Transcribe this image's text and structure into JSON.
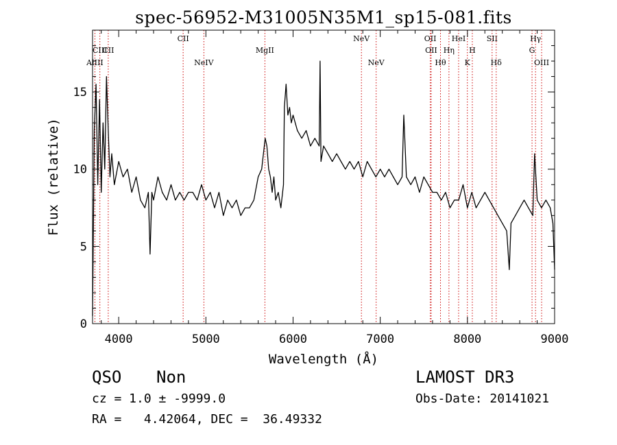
{
  "chart_data": {
    "type": "line",
    "title": "spec-56952-M31005N35M1_sp15-081.fits",
    "xlabel": "Wavelength (Å)",
    "ylabel": "Flux (relative)",
    "xlim": [
      3700,
      9000
    ],
    "ylim": [
      0,
      19
    ],
    "xticks": [
      4000,
      5000,
      6000,
      7000,
      8000,
      9000
    ],
    "yticks": [
      0,
      5,
      10,
      15
    ],
    "grid": false,
    "colors": {
      "line": "#000000",
      "marker": "#cc0000"
    },
    "series": [
      {
        "name": "flux",
        "x": [
          3700,
          3720,
          3740,
          3760,
          3780,
          3800,
          3820,
          3840,
          3860,
          3880,
          3900,
          3920,
          3950,
          4000,
          4050,
          4100,
          4150,
          4200,
          4250,
          4300,
          4340,
          4360,
          4380,
          4400,
          4450,
          4500,
          4550,
          4600,
          4650,
          4700,
          4750,
          4800,
          4850,
          4900,
          4950,
          5000,
          5050,
          5100,
          5150,
          5200,
          5250,
          5300,
          5350,
          5400,
          5450,
          5500,
          5550,
          5600,
          5640,
          5680,
          5700,
          5720,
          5740,
          5760,
          5780,
          5800,
          5830,
          5860,
          5890,
          5900,
          5920,
          5940,
          5960,
          5980,
          6000,
          6050,
          6100,
          6150,
          6200,
          6250,
          6300,
          6310,
          6320,
          6350,
          6400,
          6450,
          6500,
          6550,
          6600,
          6650,
          6700,
          6750,
          6800,
          6850,
          6900,
          6950,
          7000,
          7050,
          7100,
          7150,
          7200,
          7250,
          7270,
          7300,
          7350,
          7400,
          7450,
          7500,
          7550,
          7600,
          7650,
          7700,
          7750,
          7800,
          7850,
          7900,
          7950,
          8000,
          8050,
          8100,
          8150,
          8200,
          8250,
          8300,
          8350,
          8400,
          8450,
          8480,
          8500,
          8550,
          8600,
          8650,
          8700,
          8750,
          8770,
          8800,
          8850,
          8900,
          8950,
          8980,
          9000
        ],
        "values": [
          0.5,
          12.5,
          15.5,
          9.0,
          14.5,
          8.5,
          13.0,
          10.0,
          16.0,
          12.5,
          9.5,
          11.0,
          9.0,
          10.5,
          9.5,
          10.0,
          8.5,
          9.5,
          8.0,
          7.5,
          8.5,
          4.5,
          8.5,
          8.0,
          9.5,
          8.5,
          8.0,
          9.0,
          8.0,
          8.5,
          8.0,
          8.5,
          8.5,
          8.0,
          9.0,
          8.0,
          8.5,
          7.5,
          8.5,
          7.0,
          8.0,
          7.5,
          8.0,
          7.0,
          7.5,
          7.5,
          8.0,
          9.5,
          10.0,
          12.0,
          11.5,
          10.0,
          9.5,
          8.5,
          9.5,
          8.0,
          8.5,
          7.5,
          9.0,
          14.0,
          15.5,
          13.5,
          14.0,
          13.0,
          13.5,
          12.5,
          12.0,
          12.5,
          11.5,
          12.0,
          11.5,
          17.0,
          10.5,
          11.5,
          11.0,
          10.5,
          11.0,
          10.5,
          10.0,
          10.5,
          10.0,
          10.5,
          9.5,
          10.5,
          10.0,
          9.5,
          10.0,
          9.5,
          10.0,
          9.5,
          9.0,
          9.5,
          13.5,
          9.5,
          9.0,
          9.5,
          8.5,
          9.5,
          9.0,
          8.5,
          8.5,
          8.0,
          8.5,
          7.5,
          8.0,
          8.0,
          9.0,
          7.5,
          8.5,
          7.5,
          8.0,
          8.5,
          8.0,
          7.5,
          7.0,
          6.5,
          6.0,
          3.5,
          6.5,
          7.0,
          7.5,
          8.0,
          7.5,
          7.0,
          11.0,
          8.0,
          7.5,
          8.0,
          7.5,
          6.5,
          3.5
        ]
      }
    ],
    "line_markers": [
      {
        "label": "AlIII",
        "wavelength": 3727,
        "row": 3,
        "color": "#cc0000"
      },
      {
        "label": "CIII",
        "wavelength": 3784,
        "row": 2,
        "color": "#cc0000"
      },
      {
        "label": "CII",
        "wavelength": 3880,
        "row": 2,
        "color": "#cc0000"
      },
      {
        "label": "CII",
        "wavelength": 4739,
        "row": 1,
        "color": "#cc0000"
      },
      {
        "label": "NeIV",
        "wavelength": 4977,
        "row": 3,
        "color": "#cc0000"
      },
      {
        "label": "MgII",
        "wavelength": 5677,
        "row": 2,
        "color": "#cc0000"
      },
      {
        "label": "NeV",
        "wavelength": 6784,
        "row": 1,
        "color": "#cc0000"
      },
      {
        "label": "NeV",
        "wavelength": 6953,
        "row": 3,
        "color": "#cc0000"
      },
      {
        "label": "OII",
        "wavelength": 7574,
        "row": 1,
        "color": "#cc0000"
      },
      {
        "label": "OII",
        "wavelength": 7584,
        "row": 2,
        "color": "#cc0000"
      },
      {
        "label": "Hθ",
        "wavelength": 7691,
        "row": 3,
        "color": "#cc0000"
      },
      {
        "label": "Hη",
        "wavelength": 7788,
        "row": 2,
        "color": "#cc0000"
      },
      {
        "label": "HeI",
        "wavelength": 7899,
        "row": 1,
        "color": "#cc0000"
      },
      {
        "label": "K",
        "wavelength": 7999,
        "row": 3,
        "color": "#cc0000"
      },
      {
        "label": "H",
        "wavelength": 8056,
        "row": 2,
        "color": "#cc0000"
      },
      {
        "label": "SII",
        "wavelength": 8283,
        "row": 1,
        "color": "#cc0000"
      },
      {
        "label": "Hδ",
        "wavelength": 8330,
        "row": 3,
        "color": "#cc0000"
      },
      {
        "label": "G",
        "wavelength": 8741,
        "row": 2,
        "color": "#cc0000"
      },
      {
        "label": "Hγ",
        "wavelength": 8781,
        "row": 1,
        "color": "#cc0000"
      },
      {
        "label": "OIII",
        "wavelength": 8851,
        "row": 3,
        "color": "#cc0000"
      }
    ]
  },
  "footer": {
    "class_label": "QSO",
    "subclass_label": "Non",
    "survey": "LAMOST DR3",
    "cz_line": "cz = 1.0 ± -9999.0",
    "obs_date": "Obs-Date: 20141021",
    "coords": "RA =   4.42064, DEC =  36.49332"
  }
}
